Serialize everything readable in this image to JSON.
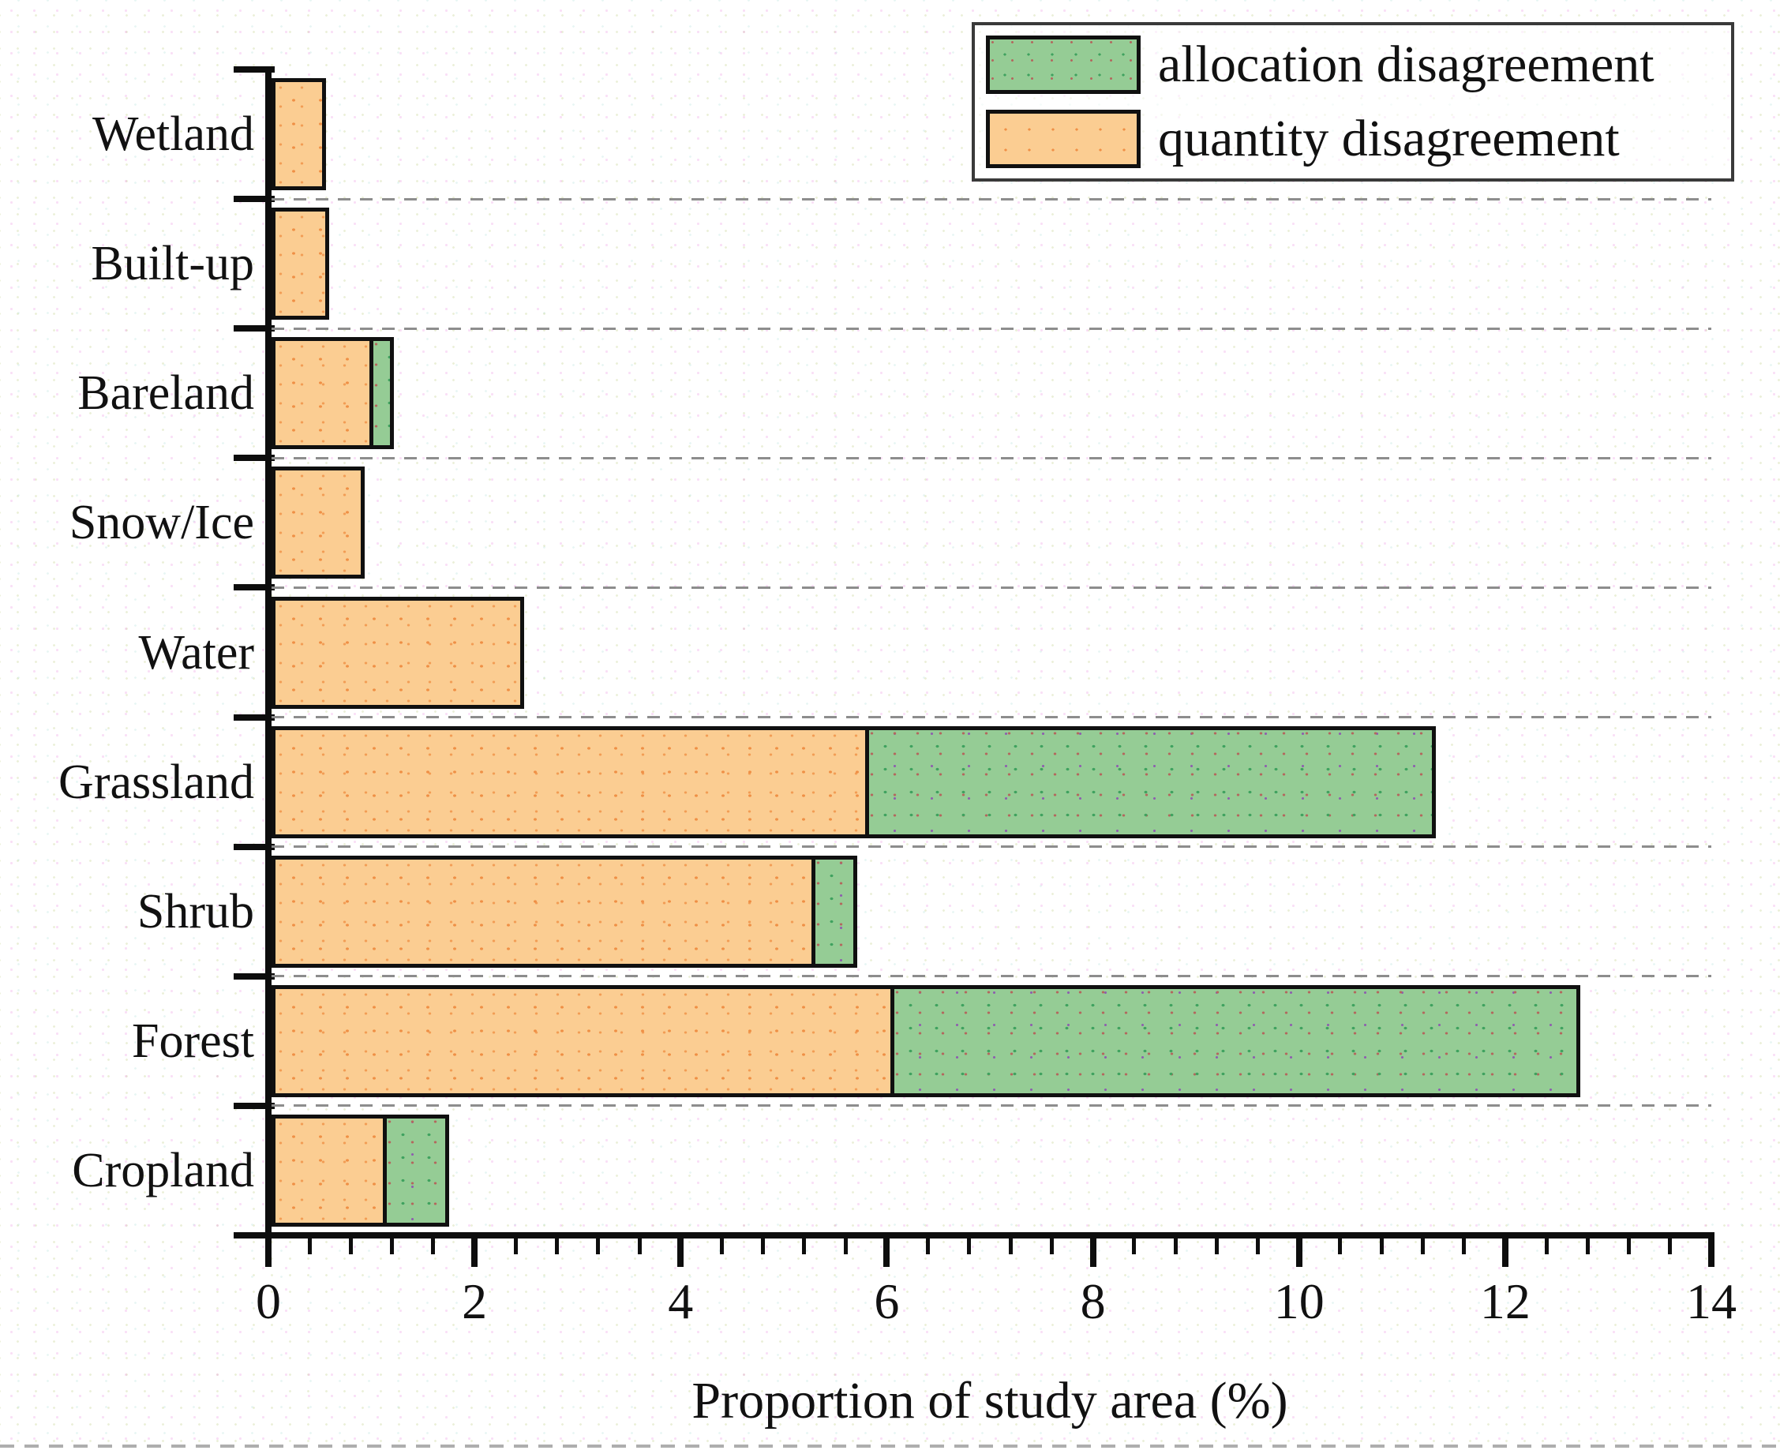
{
  "chart_data": {
    "type": "bar",
    "orientation": "horizontal",
    "stacked": true,
    "title": "",
    "xlabel": "Proportion of study area (%)",
    "ylabel": "",
    "xlim": [
      0,
      14
    ],
    "xticks": [
      0,
      2,
      4,
      6,
      8,
      10,
      12,
      14
    ],
    "minor_tick_step": 0.4,
    "grid": "dashed horizontal between categories",
    "legend_position": "top-right",
    "categories_top_to_bottom": [
      "Wetland",
      "Built-up",
      "Bareland",
      "Snow/Ice",
      "Water",
      "Grassland",
      "Shrub",
      "Forest",
      "Cropland"
    ],
    "series": [
      {
        "name": "quantity disagreement",
        "color": "#fbcd92",
        "values": [
          0.53,
          0.56,
          0.98,
          0.9,
          2.45,
          5.76,
          5.27,
          6.0,
          1.09
        ]
      },
      {
        "name": "allocation disagreement",
        "color": "#95cc95",
        "values": [
          0,
          0,
          0.21,
          0,
          0,
          5.54,
          0.41,
          6.7,
          0.63
        ]
      }
    ],
    "totals": [
      0.53,
      0.56,
      1.19,
      0.9,
      2.45,
      11.3,
      5.68,
      12.7,
      1.72
    ]
  },
  "legend": {
    "items": [
      {
        "label": "allocation disagreement",
        "color": "#95cc95"
      },
      {
        "label": "quantity disagreement",
        "color": "#fbcd92"
      }
    ]
  },
  "colors": {
    "quantity_fill": "#fbcd92",
    "allocation_fill": "#95cc95",
    "bar_border": "#101010",
    "axis": "#0d0d0d",
    "gridline": "#8d8d8d",
    "text": "#111111"
  }
}
